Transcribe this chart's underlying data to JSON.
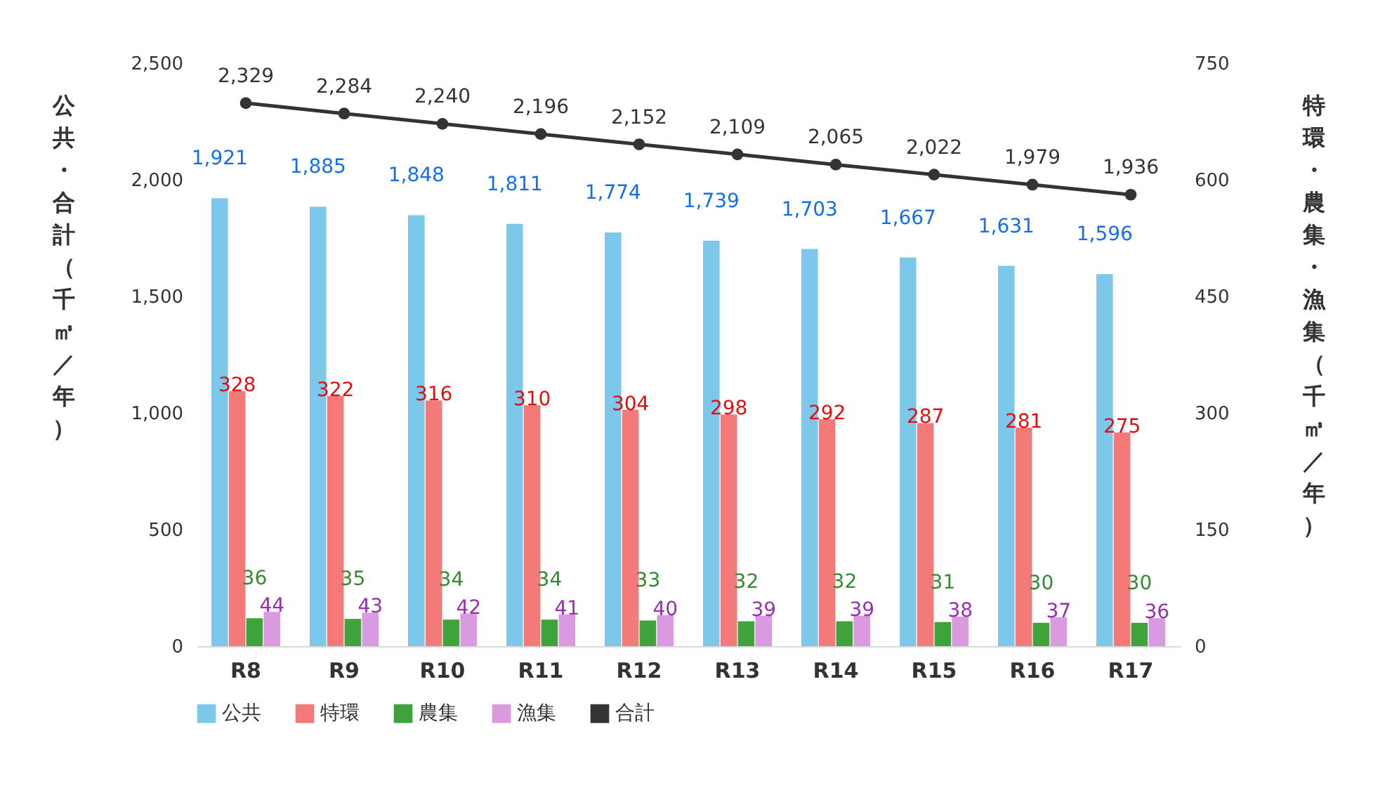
{
  "chart_data": {
    "type": "bar",
    "ylabel": "公共・合計（千㎥／年）",
    "y2label": "特環・農集・漁集（千㎥／年）",
    "categories": [
      "R8",
      "R9",
      "R10",
      "R11",
      "R12",
      "R13",
      "R14",
      "R15",
      "R16",
      "R17"
    ],
    "series": [
      {
        "name": "公共",
        "color": "#7cc8ea",
        "values": [
          1921,
          1885,
          1848,
          1811,
          1774,
          1739,
          1703,
          1667,
          1631,
          1596
        ],
        "value_labels": [
          "1,921",
          "1,885",
          "1,848",
          "1,811",
          "1,774",
          "1,739",
          "1,703",
          "1,667",
          "1,631",
          "1,596"
        ]
      },
      {
        "name": "特環",
        "color": "#f47a7a",
        "axis": "y2",
        "values": [
          328,
          322,
          316,
          310,
          304,
          298,
          292,
          287,
          281,
          275
        ],
        "value_labels": [
          "328",
          "322",
          "316",
          "310",
          "304",
          "298",
          "292",
          "287",
          "281",
          "275"
        ]
      },
      {
        "name": "農集",
        "color": "#3ea33a",
        "axis": "y2",
        "values": [
          36,
          35,
          34,
          34,
          33,
          32,
          32,
          31,
          30,
          30
        ],
        "value_labels": [
          "36",
          "35",
          "34",
          "34",
          "33",
          "32",
          "32",
          "31",
          "30",
          "30"
        ]
      },
      {
        "name": "漁集",
        "color": "#d99ae0",
        "axis": "y2",
        "values": [
          44,
          43,
          42,
          41,
          40,
          39,
          39,
          38,
          37,
          36
        ],
        "value_labels": [
          "44",
          "43",
          "42",
          "41",
          "40",
          "39",
          "39",
          "38",
          "37",
          "36"
        ]
      },
      {
        "name": "合計",
        "type": "line",
        "color": "#333333",
        "marker": "circle",
        "values": [
          2329,
          2284,
          2240,
          2196,
          2152,
          2109,
          2065,
          2022,
          1979,
          1936
        ],
        "value_labels": [
          "2,329",
          "2,284",
          "2,240",
          "2,196",
          "2,152",
          "2,109",
          "2,065",
          "2,022",
          "1,979",
          "1,936"
        ]
      }
    ],
    "ylim": [
      0,
      2500
    ],
    "yticks": [
      0,
      500,
      {
        "value": 1000,
        "label": "1,000"
      },
      {
        "value": 1500,
        "label": "1,500"
      },
      {
        "value": 2000,
        "label": "2,000"
      },
      {
        "value": 2500,
        "label": "2,500"
      }
    ],
    "y2lim": [
      0,
      750
    ],
    "y2ticks": [
      0,
      150,
      300,
      450,
      600,
      750
    ],
    "legend": "bottom"
  }
}
